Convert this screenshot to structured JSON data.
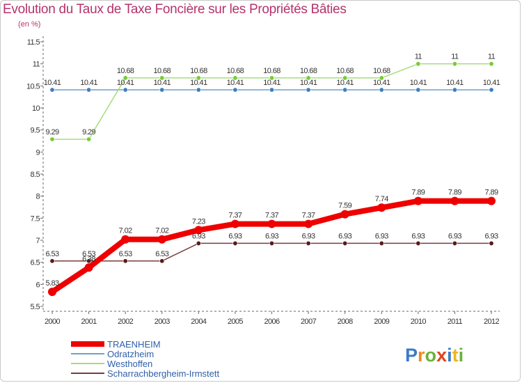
{
  "header": {
    "title": "Evolution du Taux de Taxe Foncière sur les Propriétés Bâties",
    "unit": "(en %)"
  },
  "logo": {
    "text": "Proxiti",
    "colors": [
      "#3a7bc8",
      "#f08a1c",
      "#6bb33a",
      "#e0431f",
      "#3a7bc8",
      "#f0b41c",
      "#6bb33a"
    ]
  },
  "chart_data": {
    "type": "line",
    "title": "Evolution du Taux de Taxe Foncière sur les Propriétés Bâties",
    "ylabel": "(en %)",
    "xlabel": "",
    "grid": false,
    "legend": "bottom-left",
    "ylim": [
      5.5,
      11.5
    ],
    "yticks": [
      "5.5",
      "6",
      "6.5",
      "7",
      "7.5",
      "8",
      "8.5",
      "9",
      "9.5",
      "10",
      "10.5",
      "11",
      "11.5"
    ],
    "x": [
      "2000",
      "2001",
      "2002",
      "2003",
      "2004",
      "2005",
      "2006",
      "2007",
      "2008",
      "2009",
      "2010",
      "2011",
      "2012"
    ],
    "series": [
      {
        "name": "TRAENHEIM",
        "color": "#ee0000",
        "marker": "#cc0000",
        "emphasis": true,
        "values": [
          5.83,
          6.38,
          7.02,
          7.02,
          7.23,
          7.37,
          7.37,
          7.37,
          7.59,
          7.74,
          7.89,
          7.89,
          7.89
        ],
        "labels": [
          "5.83",
          "6.38",
          "7.02",
          "7.02",
          "7.23",
          "7.37",
          "7.37",
          "7.37",
          "7.59",
          "7.74",
          "7.89",
          "7.89",
          "7.89"
        ]
      },
      {
        "name": "Odratzheim",
        "color": "#6f9fc8",
        "marker": "#3d7fc0",
        "emphasis": false,
        "values": [
          10.41,
          10.41,
          10.41,
          10.41,
          10.41,
          10.41,
          10.41,
          10.41,
          10.41,
          10.41,
          10.41,
          10.41,
          10.41
        ],
        "labels": [
          "10.41",
          "10.41",
          "10.41",
          "10.41",
          "10.41",
          "10.41",
          "10.41",
          "10.41",
          "10.41",
          "10.41",
          "10.41",
          "10.41",
          "10.41"
        ]
      },
      {
        "name": "Westhoffen",
        "color": "#a6dd7a",
        "marker": "#77cc33",
        "emphasis": false,
        "values": [
          9.29,
          9.29,
          10.68,
          10.68,
          10.68,
          10.68,
          10.68,
          10.68,
          10.68,
          10.68,
          11,
          11,
          11
        ],
        "labels": [
          "9.29",
          "9.29",
          "10.68",
          "10.68",
          "10.68",
          "10.68",
          "10.68",
          "10.68",
          "10.68",
          "10.68",
          "11",
          "11",
          "11"
        ]
      },
      {
        "name": "Scharrachbergheim-Irmstett",
        "color": "#7a3b3b",
        "marker": "#5a1a1a",
        "emphasis": false,
        "values": [
          6.53,
          6.53,
          6.53,
          6.53,
          6.93,
          6.93,
          6.93,
          6.93,
          6.93,
          6.93,
          6.93,
          6.93,
          6.93
        ],
        "labels": [
          "6.53",
          "6.53",
          "6.53",
          "6.53",
          "6.93",
          "6.93",
          "6.93",
          "6.93",
          "6.93",
          "6.93",
          "6.93",
          "6.93",
          "6.93"
        ]
      }
    ]
  }
}
